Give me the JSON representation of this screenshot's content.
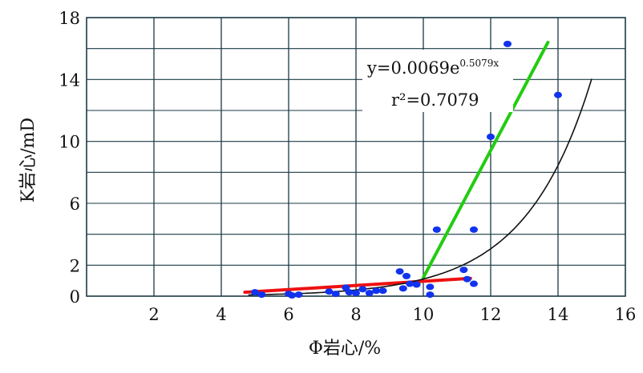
{
  "chart_data": {
    "type": "scatter",
    "xlabel": "Φ岩心/%",
    "ylabel": "K岩心/mD",
    "xlim": [
      0,
      16
    ],
    "ylim": [
      0,
      18
    ],
    "xticks": [
      2,
      4,
      6,
      8,
      10,
      12,
      14,
      16
    ],
    "yticks": [
      0,
      2,
      6,
      10,
      14,
      18
    ],
    "grid": true,
    "x_grid_step": 2,
    "y_grid_step": 2,
    "points": [
      {
        "x": 5.0,
        "y": 0.25
      },
      {
        "x": 5.2,
        "y": 0.1
      },
      {
        "x": 6.0,
        "y": 0.15
      },
      {
        "x": 6.1,
        "y": 0.05
      },
      {
        "x": 6.3,
        "y": 0.1
      },
      {
        "x": 7.2,
        "y": 0.3
      },
      {
        "x": 7.4,
        "y": 0.15
      },
      {
        "x": 7.7,
        "y": 0.55
      },
      {
        "x": 7.8,
        "y": 0.25
      },
      {
        "x": 8.0,
        "y": 0.2
      },
      {
        "x": 8.2,
        "y": 0.45
      },
      {
        "x": 8.4,
        "y": 0.2
      },
      {
        "x": 8.6,
        "y": 0.35
      },
      {
        "x": 8.8,
        "y": 0.35
      },
      {
        "x": 9.3,
        "y": 1.6
      },
      {
        "x": 9.4,
        "y": 0.5
      },
      {
        "x": 9.5,
        "y": 1.3
      },
      {
        "x": 9.6,
        "y": 0.8
      },
      {
        "x": 9.8,
        "y": 0.75
      },
      {
        "x": 10.2,
        "y": 0.6
      },
      {
        "x": 10.2,
        "y": 0.1
      },
      {
        "x": 10.4,
        "y": 4.3
      },
      {
        "x": 11.2,
        "y": 1.7
      },
      {
        "x": 11.3,
        "y": 1.1
      },
      {
        "x": 11.5,
        "y": 0.8
      },
      {
        "x": 11.5,
        "y": 4.3
      },
      {
        "x": 12.0,
        "y": 10.3
      },
      {
        "x": 12.5,
        "y": 16.3
      },
      {
        "x": 14.0,
        "y": 13.0
      }
    ],
    "lines": [
      {
        "color": "#22cc11",
        "points": [
          [
            10.0,
            1.2
          ],
          [
            13.7,
            16.4
          ]
        ]
      },
      {
        "color": "#ee1111",
        "points": [
          [
            4.7,
            0.25
          ],
          [
            11.4,
            1.15
          ]
        ]
      },
      {
        "color": "#111111",
        "fit": "exp",
        "a": 0.0069,
        "b": 0.5079,
        "x_range": [
          4.8,
          15.0
        ]
      }
    ],
    "annotation": {
      "equation": "y=0.0069e",
      "exponent": "0.5079x",
      "r2": "r²=0.7079"
    },
    "colors": {
      "points": "#1133ee",
      "grid": "#1a3a44"
    }
  }
}
